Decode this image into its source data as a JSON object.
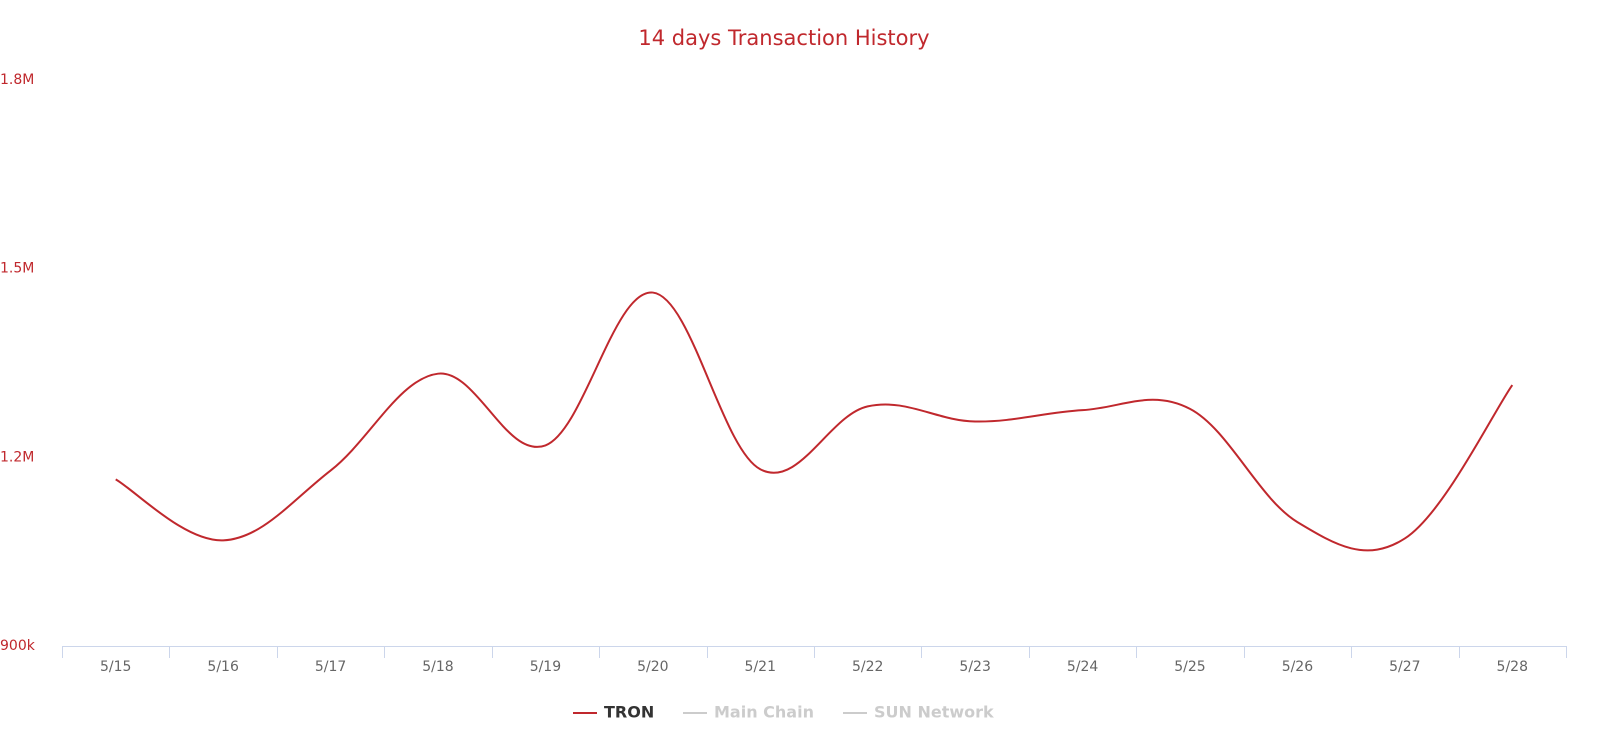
{
  "chart_data": {
    "type": "line",
    "title": "14 days Transaction History",
    "categories": [
      "5/15",
      "5/16",
      "5/17",
      "5/18",
      "5/19",
      "5/20",
      "5/21",
      "5/22",
      "5/23",
      "5/24",
      "5/25",
      "5/26",
      "5/27",
      "5/28"
    ],
    "series": [
      {
        "name": "TRON",
        "color": "#c0282d",
        "visible": true,
        "values": [
          1165000,
          1068000,
          1179000,
          1333000,
          1219000,
          1462000,
          1181000,
          1281000,
          1257000,
          1275000,
          1277000,
          1097000,
          1071000,
          1315000
        ]
      },
      {
        "name": "Main Chain",
        "color": "#cccccc",
        "visible": false
      },
      {
        "name": "SUN Network",
        "color": "#cccccc",
        "visible": false
      }
    ],
    "ylim": [
      900000,
      1800000
    ],
    "yticks": [
      {
        "value": 900000,
        "label": "900k"
      },
      {
        "value": 1200000,
        "label": "1.2M"
      },
      {
        "value": 1500000,
        "label": "1.5M"
      },
      {
        "value": 1800000,
        "label": "1.8M"
      }
    ],
    "grid": false,
    "legend": "bottom"
  }
}
